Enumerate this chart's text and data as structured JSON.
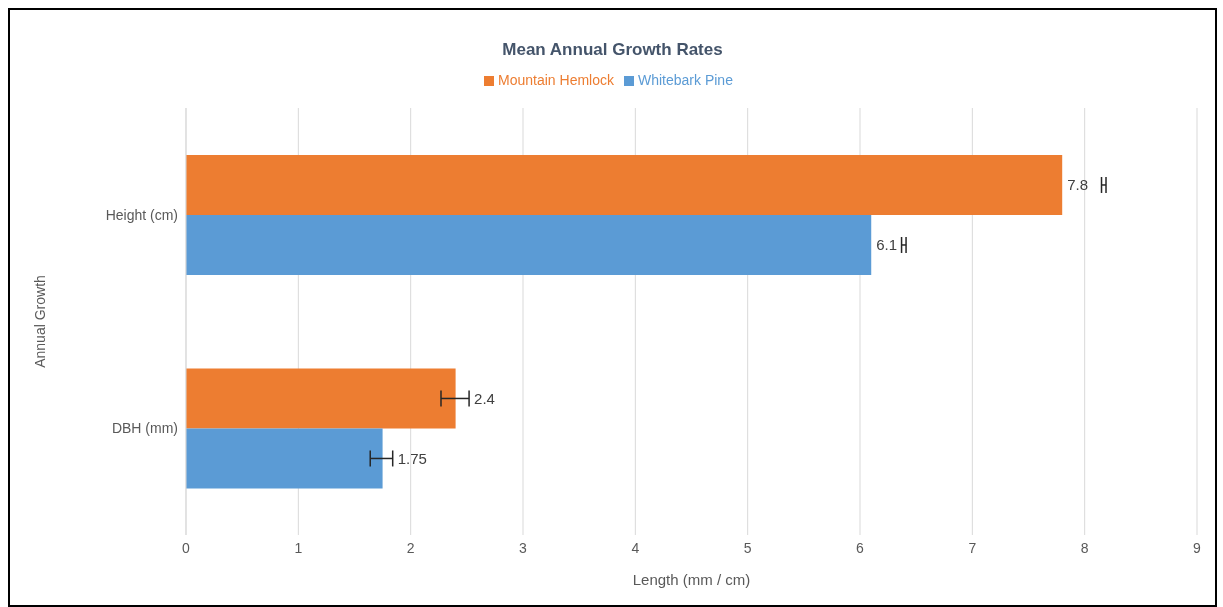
{
  "chart_data": {
    "type": "bar",
    "orientation": "horizontal",
    "title": "Mean Annual Growth Rates",
    "xlabel": "Length (mm / cm)",
    "ylabel": "Annual Growth",
    "categories": [
      "Height (cm)",
      "DBH (mm)"
    ],
    "series": [
      {
        "name": "Mountain Hemlock",
        "color": "#ed7d31",
        "values": [
          7.8,
          2.4
        ],
        "errors": [
          [
            8.15,
            8.19
          ],
          [
            2.27,
            2.52
          ]
        ]
      },
      {
        "name": "Whitebark Pine",
        "color": "#5b9bd5",
        "values": [
          6.1,
          1.75
        ],
        "errors": [
          [
            6.37,
            6.41
          ],
          [
            1.64,
            1.84
          ]
        ]
      }
    ],
    "xlim": [
      0,
      9
    ],
    "xticks": [
      0,
      1,
      2,
      3,
      4,
      5,
      6,
      7,
      8,
      9
    ],
    "grid": "x",
    "legend": "top",
    "data_labels": true
  }
}
